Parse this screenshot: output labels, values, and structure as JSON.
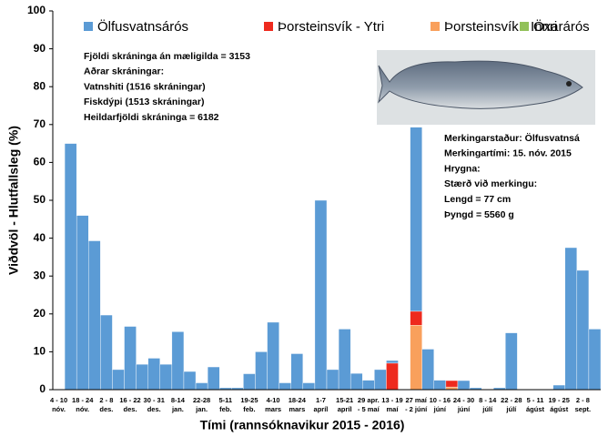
{
  "chart_data": {
    "type": "stacked_bar",
    "xlabel": "Tími (rannsóknavikur 2015 - 2016)",
    "ylabel": "Viðdvöl - Hlutfallsleg (%)",
    "categories": [
      [
        "4 - 10",
        "nóv."
      ],
      null,
      [
        "18 - 24",
        "nóv."
      ],
      null,
      [
        "2 - 8",
        "des."
      ],
      null,
      [
        "16 - 22",
        "des."
      ],
      null,
      [
        "30 - 31",
        "des."
      ],
      null,
      [
        "8-14",
        "jan."
      ],
      null,
      [
        "22-28",
        "jan."
      ],
      null,
      [
        "5-11",
        "feb."
      ],
      null,
      [
        "19-25",
        "feb."
      ],
      null,
      [
        "4-10",
        "mars"
      ],
      null,
      [
        "18-24",
        "mars"
      ],
      null,
      [
        "1-7",
        "apríl"
      ],
      null,
      [
        "15-21",
        "apríl"
      ],
      null,
      [
        "29 apr.",
        "- 5 maí"
      ],
      null,
      [
        "13 - 19",
        "maí"
      ],
      null,
      [
        "27 maí",
        "- 2 júní"
      ],
      null,
      [
        "10 - 16",
        "júní"
      ],
      null,
      [
        "24 - 30",
        "júní"
      ],
      null,
      [
        "8 - 14",
        "júlí"
      ],
      null,
      [
        "22 - 28",
        "júlí"
      ],
      null,
      [
        "5 - 11",
        "ágúst"
      ],
      null,
      [
        "19 - 25",
        "ágúst"
      ],
      null,
      [
        "2 - 8",
        "sept."
      ],
      null
    ],
    "series": [
      {
        "name": "Ölfusvatnsárós",
        "color": "#5b9bd5",
        "values": [
          0,
          65,
          46,
          39.3,
          19.7,
          5.3,
          16.7,
          6.7,
          8.3,
          6.7,
          15.3,
          4.8,
          1.8,
          6,
          0.5,
          0.5,
          4.2,
          10,
          17.8,
          1.8,
          9.5,
          1.8,
          50,
          5.3,
          16,
          4.3,
          2.5,
          5.3,
          0.7,
          0,
          48.6,
          10.7,
          2.5,
          0,
          2.4,
          0.5,
          0,
          0.5,
          15,
          0,
          0,
          0,
          1.2,
          37.5,
          31.5,
          16
        ]
      },
      {
        "name": "Þorsteinsvík - Ytri",
        "color": "#ee2a1e",
        "values": [
          0,
          0,
          0,
          0,
          0,
          0,
          0,
          0,
          0,
          0,
          0,
          0,
          0,
          0,
          0,
          0,
          0,
          0,
          0,
          0,
          0,
          0,
          0,
          0,
          0,
          0,
          0,
          0,
          7,
          0,
          3.7,
          0,
          0,
          1.7,
          0,
          0,
          0,
          0,
          0,
          0,
          0,
          0,
          0,
          0,
          0,
          0
        ]
      },
      {
        "name": "Þorsteinsvík - Innri",
        "color": "#f9a05c",
        "values": [
          0,
          0,
          0,
          0,
          0,
          0,
          0,
          0,
          0,
          0,
          0,
          0,
          0,
          0,
          0,
          0,
          0,
          0,
          0,
          0,
          0,
          0,
          0,
          0,
          0,
          0,
          0,
          0,
          0,
          0,
          17,
          0,
          0,
          0.7,
          0,
          0,
          0,
          0,
          0,
          0,
          0,
          0,
          0,
          0,
          0,
          0
        ]
      },
      {
        "name": "Öxarárós",
        "color": "#92c15a",
        "values": [
          0,
          0,
          0,
          0,
          0,
          0,
          0,
          0,
          0,
          0,
          0,
          0,
          0,
          0,
          0,
          0,
          0,
          0,
          0,
          0,
          0,
          0,
          0,
          0,
          0,
          0,
          0,
          0,
          0,
          0,
          0,
          0,
          0,
          0,
          0,
          0,
          0,
          0,
          0,
          0,
          0,
          0,
          0,
          0,
          0,
          0
        ]
      }
    ],
    "ylim": [
      0,
      100
    ],
    "yticks": [
      0,
      10,
      20,
      30,
      40,
      50,
      60,
      70,
      80,
      90,
      100
    ],
    "annotations": [
      [
        "Fjöldi skráninga án mæligilda = 3153",
        "Aðrar skráningar:",
        "Vatnshiti (1516 skráningar)",
        "Fiskdýpi (1513 skráningar)",
        "Heildarfjöldi skráninga  = 6182"
      ],
      [
        "Merkingarstaður: Ölfusvatnsá",
        "Merkingartími: 15. nóv. 2015",
        "Hrygna:",
        "Stærð við merkingu:",
        "Lengd = 77 cm",
        "Þyngd = 5560 g"
      ]
    ]
  }
}
